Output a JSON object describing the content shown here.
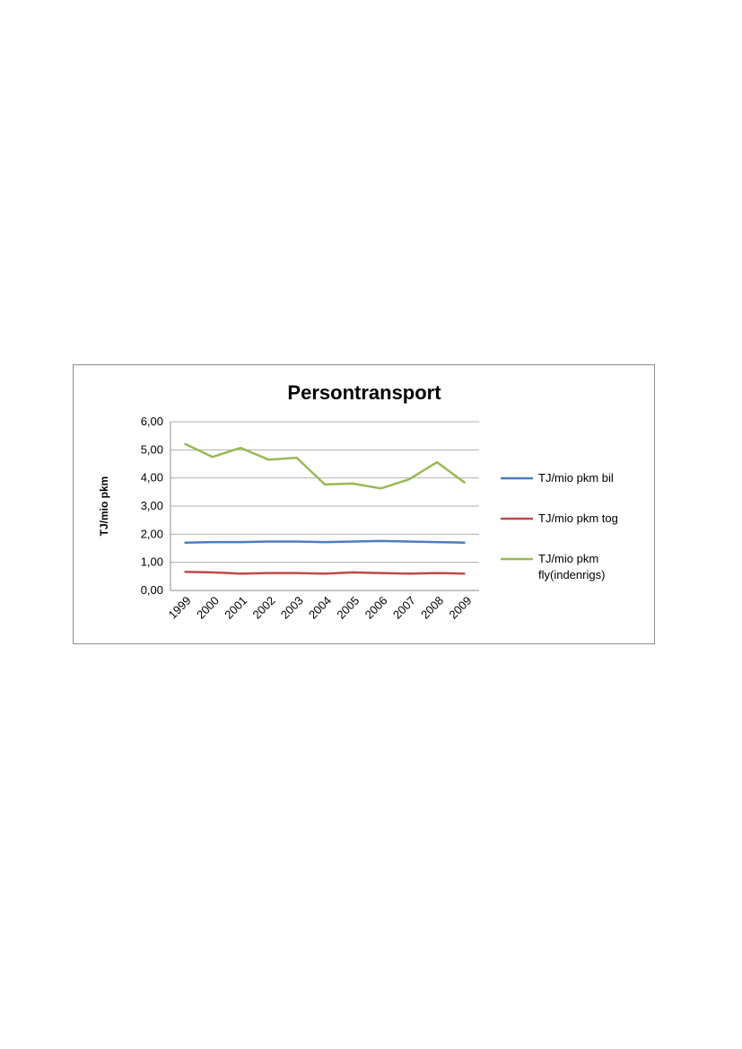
{
  "chart_data": {
    "type": "line",
    "title": "Persontransport",
    "xlabel": "",
    "ylabel": "TJ/mio pkm",
    "categories": [
      "1999",
      "2000",
      "2001",
      "2002",
      "2003",
      "2004",
      "2005",
      "2006",
      "2007",
      "2008",
      "2009"
    ],
    "ylim": [
      0,
      6
    ],
    "yticks": [
      "0,00",
      "1,00",
      "2,00",
      "3,00",
      "4,00",
      "5,00",
      "6,00"
    ],
    "grid": true,
    "legend_position": "right",
    "series": [
      {
        "name": "TJ/mio pkm bil",
        "color": "#4a7ebb",
        "values": [
          1.7,
          1.72,
          1.72,
          1.74,
          1.74,
          1.72,
          1.74,
          1.76,
          1.74,
          1.72,
          1.7
        ]
      },
      {
        "name": "TJ/mio pkm tog",
        "color": "#be4b48",
        "values": [
          0.66,
          0.64,
          0.6,
          0.62,
          0.62,
          0.6,
          0.64,
          0.62,
          0.6,
          0.62,
          0.6
        ]
      },
      {
        "name": "TJ/mio pkm fly(indenrigs)",
        "legend_lines": [
          "TJ/mio pkm",
          "fly(indenrigs)"
        ],
        "color": "#98b954",
        "values": [
          5.22,
          4.75,
          5.07,
          4.65,
          4.72,
          3.77,
          3.8,
          3.63,
          3.95,
          4.56,
          3.82
        ]
      }
    ]
  }
}
